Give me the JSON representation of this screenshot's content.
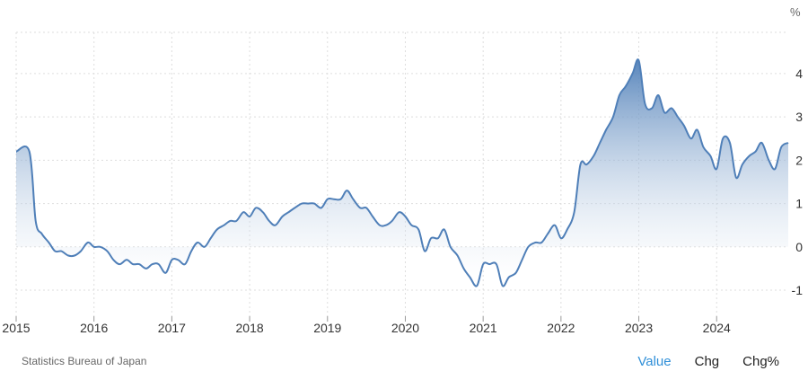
{
  "chart_data": {
    "type": "area",
    "unit_label": "%",
    "x_ticks": [
      "2015",
      "2016",
      "2017",
      "2018",
      "2019",
      "2020",
      "2021",
      "2022",
      "2023",
      "2024"
    ],
    "y_ticks": [
      "-1",
      "0",
      "1",
      "2",
      "3",
      "4"
    ],
    "xlim": [
      2015.0,
      2024.92
    ],
    "ylim": [
      -1.6,
      4.95
    ],
    "grid": true,
    "colors": {
      "line": "#4f7fb8",
      "fill_top": "#4f7fb8",
      "fill_bottom": "#ffffff",
      "grid": "#dddddd"
    },
    "points": [
      [
        2015.0,
        2.2
      ],
      [
        2015.17,
        2.2
      ],
      [
        2015.25,
        0.6
      ],
      [
        2015.33,
        0.3
      ],
      [
        2015.42,
        0.1
      ],
      [
        2015.5,
        -0.1
      ],
      [
        2015.58,
        -0.1
      ],
      [
        2015.67,
        -0.2
      ],
      [
        2015.75,
        -0.2
      ],
      [
        2015.83,
        -0.1
      ],
      [
        2015.92,
        0.1
      ],
      [
        2016.0,
        0.0
      ],
      [
        2016.08,
        0.0
      ],
      [
        2016.17,
        -0.1
      ],
      [
        2016.25,
        -0.3
      ],
      [
        2016.33,
        -0.4
      ],
      [
        2016.42,
        -0.3
      ],
      [
        2016.5,
        -0.4
      ],
      [
        2016.58,
        -0.4
      ],
      [
        2016.67,
        -0.5
      ],
      [
        2016.75,
        -0.4
      ],
      [
        2016.83,
        -0.4
      ],
      [
        2016.92,
        -0.6
      ],
      [
        2017.0,
        -0.3
      ],
      [
        2017.08,
        -0.3
      ],
      [
        2017.17,
        -0.4
      ],
      [
        2017.25,
        -0.1
      ],
      [
        2017.33,
        0.1
      ],
      [
        2017.42,
        0.0
      ],
      [
        2017.5,
        0.2
      ],
      [
        2017.58,
        0.4
      ],
      [
        2017.67,
        0.5
      ],
      [
        2017.75,
        0.6
      ],
      [
        2017.83,
        0.6
      ],
      [
        2017.92,
        0.8
      ],
      [
        2018.0,
        0.7
      ],
      [
        2018.08,
        0.9
      ],
      [
        2018.17,
        0.8
      ],
      [
        2018.25,
        0.6
      ],
      [
        2018.33,
        0.5
      ],
      [
        2018.42,
        0.7
      ],
      [
        2018.5,
        0.8
      ],
      [
        2018.58,
        0.9
      ],
      [
        2018.67,
        1.0
      ],
      [
        2018.75,
        1.0
      ],
      [
        2018.83,
        1.0
      ],
      [
        2018.92,
        0.9
      ],
      [
        2019.0,
        1.1
      ],
      [
        2019.08,
        1.1
      ],
      [
        2019.17,
        1.1
      ],
      [
        2019.25,
        1.3
      ],
      [
        2019.33,
        1.1
      ],
      [
        2019.42,
        0.9
      ],
      [
        2019.5,
        0.9
      ],
      [
        2019.58,
        0.7
      ],
      [
        2019.67,
        0.5
      ],
      [
        2019.75,
        0.5
      ],
      [
        2019.83,
        0.6
      ],
      [
        2019.92,
        0.8
      ],
      [
        2020.0,
        0.7
      ],
      [
        2020.08,
        0.5
      ],
      [
        2020.17,
        0.4
      ],
      [
        2020.25,
        -0.1
      ],
      [
        2020.33,
        0.2
      ],
      [
        2020.42,
        0.2
      ],
      [
        2020.5,
        0.4
      ],
      [
        2020.58,
        0.0
      ],
      [
        2020.67,
        -0.2
      ],
      [
        2020.75,
        -0.5
      ],
      [
        2020.83,
        -0.7
      ],
      [
        2020.92,
        -0.9
      ],
      [
        2021.0,
        -0.4
      ],
      [
        2021.08,
        -0.4
      ],
      [
        2021.17,
        -0.4
      ],
      [
        2021.25,
        -0.9
      ],
      [
        2021.33,
        -0.7
      ],
      [
        2021.42,
        -0.6
      ],
      [
        2021.5,
        -0.3
      ],
      [
        2021.58,
        0.0
      ],
      [
        2021.67,
        0.1
      ],
      [
        2021.75,
        0.1
      ],
      [
        2021.83,
        0.3
      ],
      [
        2021.92,
        0.5
      ],
      [
        2022.0,
        0.2
      ],
      [
        2022.08,
        0.4
      ],
      [
        2022.17,
        0.8
      ],
      [
        2022.25,
        1.9
      ],
      [
        2022.33,
        1.9
      ],
      [
        2022.42,
        2.1
      ],
      [
        2022.5,
        2.4
      ],
      [
        2022.58,
        2.7
      ],
      [
        2022.67,
        3.0
      ],
      [
        2022.75,
        3.5
      ],
      [
        2022.83,
        3.7
      ],
      [
        2022.92,
        4.0
      ],
      [
        2023.0,
        4.3
      ],
      [
        2023.08,
        3.3
      ],
      [
        2023.17,
        3.2
      ],
      [
        2023.25,
        3.5
      ],
      [
        2023.33,
        3.1
      ],
      [
        2023.42,
        3.2
      ],
      [
        2023.5,
        3.0
      ],
      [
        2023.58,
        2.8
      ],
      [
        2023.67,
        2.5
      ],
      [
        2023.75,
        2.7
      ],
      [
        2023.83,
        2.3
      ],
      [
        2023.92,
        2.1
      ],
      [
        2024.0,
        1.8
      ],
      [
        2024.08,
        2.5
      ],
      [
        2024.17,
        2.4
      ],
      [
        2024.25,
        1.6
      ],
      [
        2024.33,
        1.9
      ],
      [
        2024.42,
        2.1
      ],
      [
        2024.5,
        2.2
      ],
      [
        2024.58,
        2.4
      ],
      [
        2024.67,
        2.0
      ],
      [
        2024.75,
        1.8
      ],
      [
        2024.83,
        2.3
      ],
      [
        2024.92,
        2.4
      ]
    ]
  },
  "footer": {
    "source": "Statistics Bureau of Japan",
    "tabs": [
      "Value",
      "Chg",
      "Chg%"
    ],
    "active_tab": "Value"
  }
}
